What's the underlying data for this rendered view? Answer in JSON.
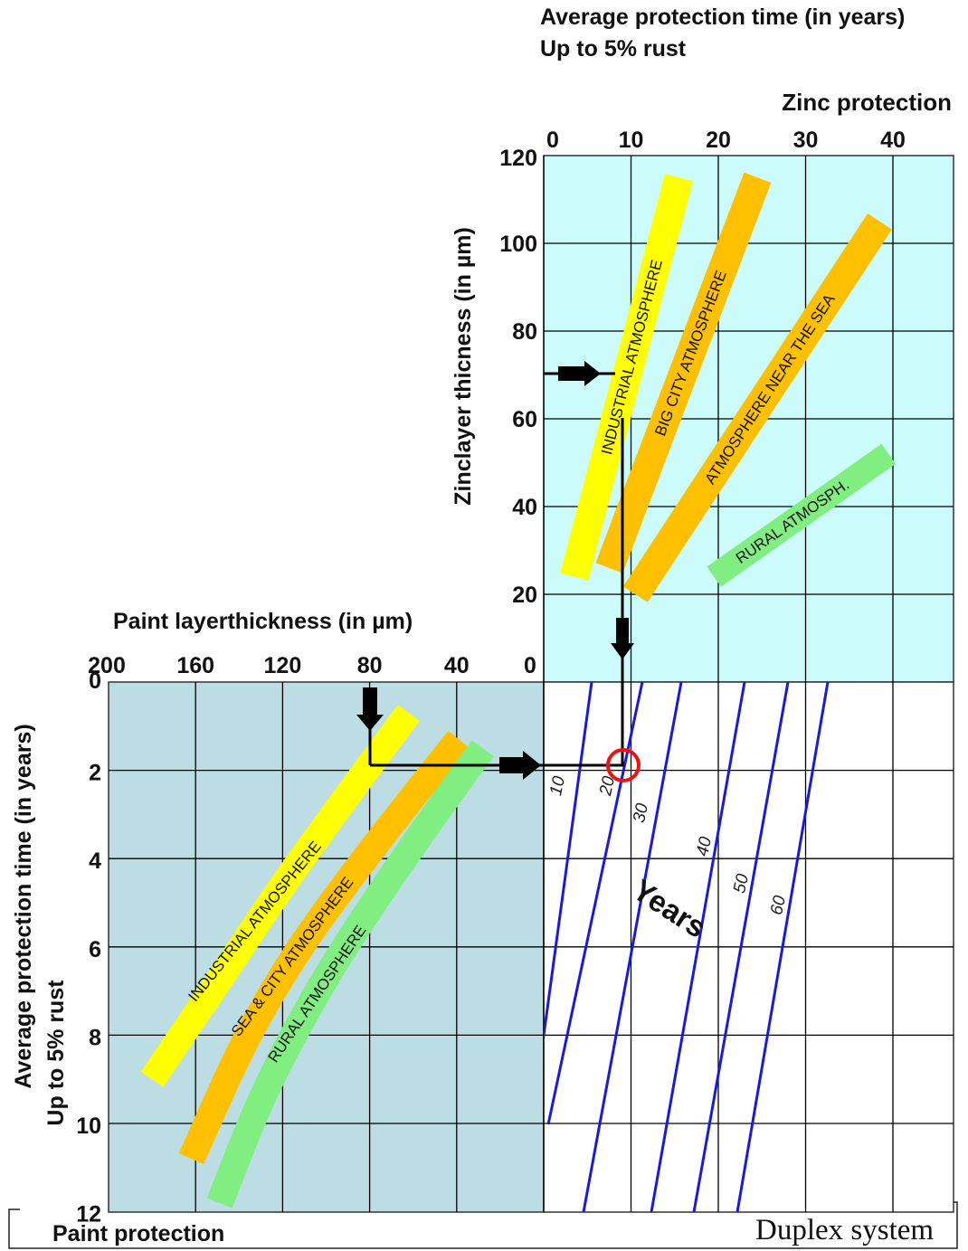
{
  "titles": {
    "top_line1": "Average protection time (in years)",
    "top_line2": "Up to 5% rust",
    "zinc_axis": "Zinc protection",
    "zinc_y_axis": "Zinclayer thicness   (in µm)",
    "paint_axis": "Paint layerthickness (in µm)",
    "paint_y_line1": "Average protection time (in years)",
    "paint_y_line2": "Up to 5% rust",
    "paint_protection": "Paint protection",
    "duplex_system": "Duplex system",
    "years_word": "Years"
  },
  "colors": {
    "zinc_panel": "#ccfbfb",
    "paint_panel": "#bcdde3",
    "industrial": "#ffff00",
    "city": "#ffc000",
    "rural": "#80ee80",
    "duplex_lines": "#1a1adc",
    "marker": "#ee1111"
  },
  "chart_data": [
    {
      "type": "line",
      "title": "Zinc protection",
      "xlabel": "Average protection time (in years) Up to 5% rust",
      "ylabel": "Zinclayer thicness   (in µm)",
      "xlim": [
        0,
        47
      ],
      "ylim": [
        0,
        120
      ],
      "x_ticks": [
        "0",
        "10",
        "20",
        "30",
        "40"
      ],
      "y_ticks": [
        "0",
        "20",
        "40",
        "60",
        "80",
        "100",
        "120"
      ],
      "grid": true,
      "series": [
        {
          "name": "INDUSTRIAL  ATMOSPHERE",
          "points": [
            [
              3.5,
              24
            ],
            [
              15.5,
              115
            ]
          ]
        },
        {
          "name": "BIG  CITY  ATMOSPHERE",
          "points": [
            [
              7.5,
              26
            ],
            [
              24.5,
              115
            ]
          ]
        },
        {
          "name": "ATMOSPHERE NEAR THE SEA",
          "points": [
            [
              10.5,
              20
            ],
            [
              38.5,
              105
            ]
          ]
        },
        {
          "name": "RURAL  ATMOSPH.",
          "points": [
            [
              19.5,
              24
            ],
            [
              39.5,
              52
            ]
          ]
        }
      ],
      "annotation": {
        "zinc_thickness": 70,
        "zinc_years": 9
      }
    },
    {
      "type": "line",
      "title": "Paint protection",
      "xlabel": "Paint layerthickness (in µm)",
      "ylabel": "Average protection time (in years) Up to 5% rust",
      "xlim": [
        200,
        0
      ],
      "ylim": [
        0,
        12
      ],
      "x_ticks": [
        "200",
        "160",
        "120",
        "80",
        "40",
        "0"
      ],
      "y_ticks": [
        "0",
        "2",
        "4",
        "6",
        "8",
        "10",
        "12"
      ],
      "grid": true,
      "series": [
        {
          "name": "INDUSTRIAL  ATMOSPHERE",
          "points": [
            [
              62,
              0.7
            ],
            [
              112,
              4.0
            ],
            [
              147,
              6.6
            ],
            [
              180,
              9.0
            ]
          ]
        },
        {
          "name": "SEA  &  CITY  ATMOSPHERE",
          "points": [
            [
              39,
              1.3
            ],
            [
              93,
              4.6
            ],
            [
              133,
              7.6
            ],
            [
              162,
              10.8
            ]
          ]
        },
        {
          "name": "RURAL  ATMOSPHERE",
          "points": [
            [
              28,
              1.5
            ],
            [
              80,
              5.0
            ],
            [
              125,
              8.8
            ],
            [
              149,
              11.8
            ]
          ]
        }
      ],
      "annotation": {
        "paint_thickness": 80,
        "paint_years": 2
      }
    },
    {
      "type": "line",
      "title": "Duplex system",
      "series_labels": [
        "10",
        "20",
        "30",
        "40",
        "50",
        "60"
      ],
      "annotation": {
        "result_years": 20,
        "marker": "zinc 9 years + paint 2 years"
      }
    }
  ]
}
